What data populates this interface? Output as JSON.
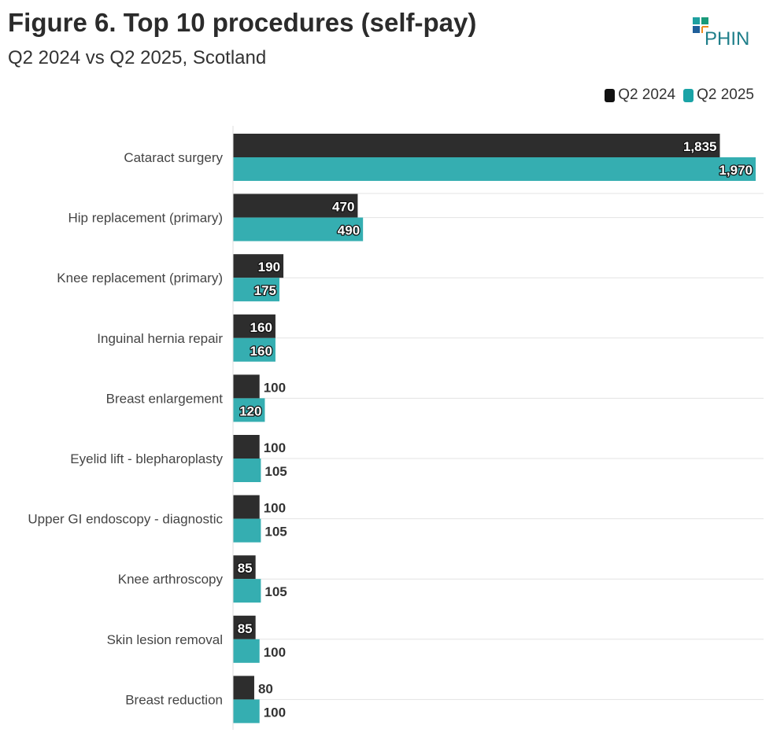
{
  "title": "Figure 6. Top 10 procedures (self-pay)",
  "subtitle": "Q2 2024 vs Q2 2025, Scotland",
  "logo_text": "PHIN",
  "colors": {
    "q2_2024": "#2d2d2d",
    "q2_2025": "#35aeb1"
  },
  "chart_data": {
    "type": "bar",
    "orientation": "horizontal",
    "title": "Figure 6. Top 10 procedures (self-pay)",
    "subtitle": "Q2 2024 vs Q2 2025, Scotland",
    "legend_position": "top-right",
    "grid": true,
    "xlim": [
      0,
      1970
    ],
    "categories": [
      "Cataract surgery",
      "Hip replacement (primary)",
      "Knee replacement (primary)",
      "Inguinal hernia repair",
      "Breast enlargement",
      "Eyelid lift - blepharoplasty",
      "Upper GI endoscopy - diagnostic",
      "Knee arthroscopy",
      "Skin lesion removal",
      "Breast reduction"
    ],
    "series": [
      {
        "name": "Q2 2024",
        "values": [
          1835,
          470,
          190,
          160,
          100,
          100,
          100,
          85,
          85,
          80
        ]
      },
      {
        "name": "Q2 2025",
        "values": [
          1970,
          490,
          175,
          160,
          120,
          105,
          105,
          105,
          100,
          100
        ]
      }
    ]
  }
}
